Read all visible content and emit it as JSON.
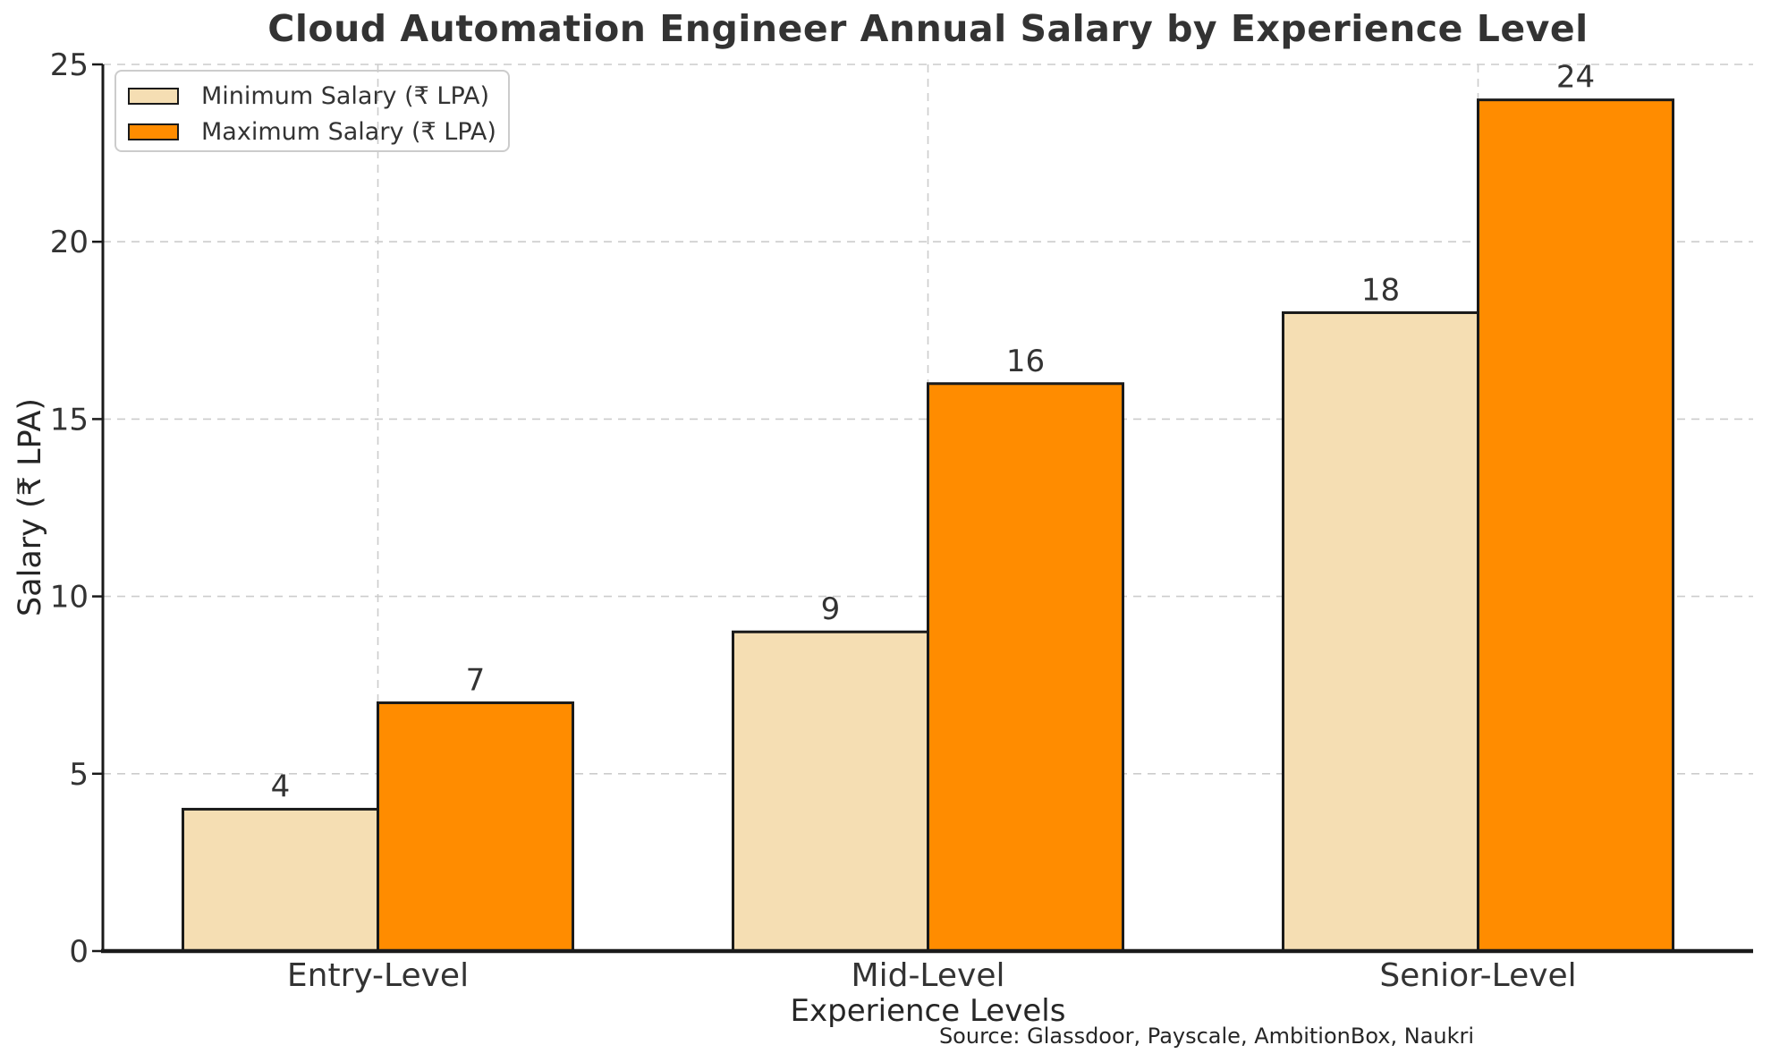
{
  "chart_data": {
    "type": "bar",
    "title": "Cloud Automation Engineer Annual Salary by Experience Level",
    "xlabel": "Experience Levels",
    "ylabel": "Salary (₹ LPA)",
    "source_note": "Source: Glassdoor, Payscale, AmbitionBox, Naukri",
    "categories": [
      "Entry-Level",
      "Mid-Level",
      "Senior-Level"
    ],
    "series": [
      {
        "name": "Minimum Salary (₹ LPA)",
        "values": [
          4,
          9,
          18
        ],
        "color": "#F5DEB3"
      },
      {
        "name": "Maximum Salary (₹ LPA)",
        "values": [
          7,
          16,
          24
        ],
        "color": "#FF8C00"
      }
    ],
    "bar_value_labels": [
      [
        4,
        9,
        18
      ],
      [
        7,
        16,
        24
      ]
    ],
    "ylim": [
      0,
      25
    ],
    "yticks": [
      0,
      5,
      10,
      15,
      20,
      25
    ],
    "grid": "dashed horizontal and vertical, light gray",
    "legend_position": "upper left",
    "colors": {
      "min_bar": "#F5DEB3",
      "max_bar": "#FF8C00",
      "bar_edge": "#1a1a1a",
      "grid": "#cccccc",
      "text": "#333333",
      "axis_text": "#262626",
      "spine": "#1a1a1a",
      "legend_border": "#cccccc"
    }
  }
}
